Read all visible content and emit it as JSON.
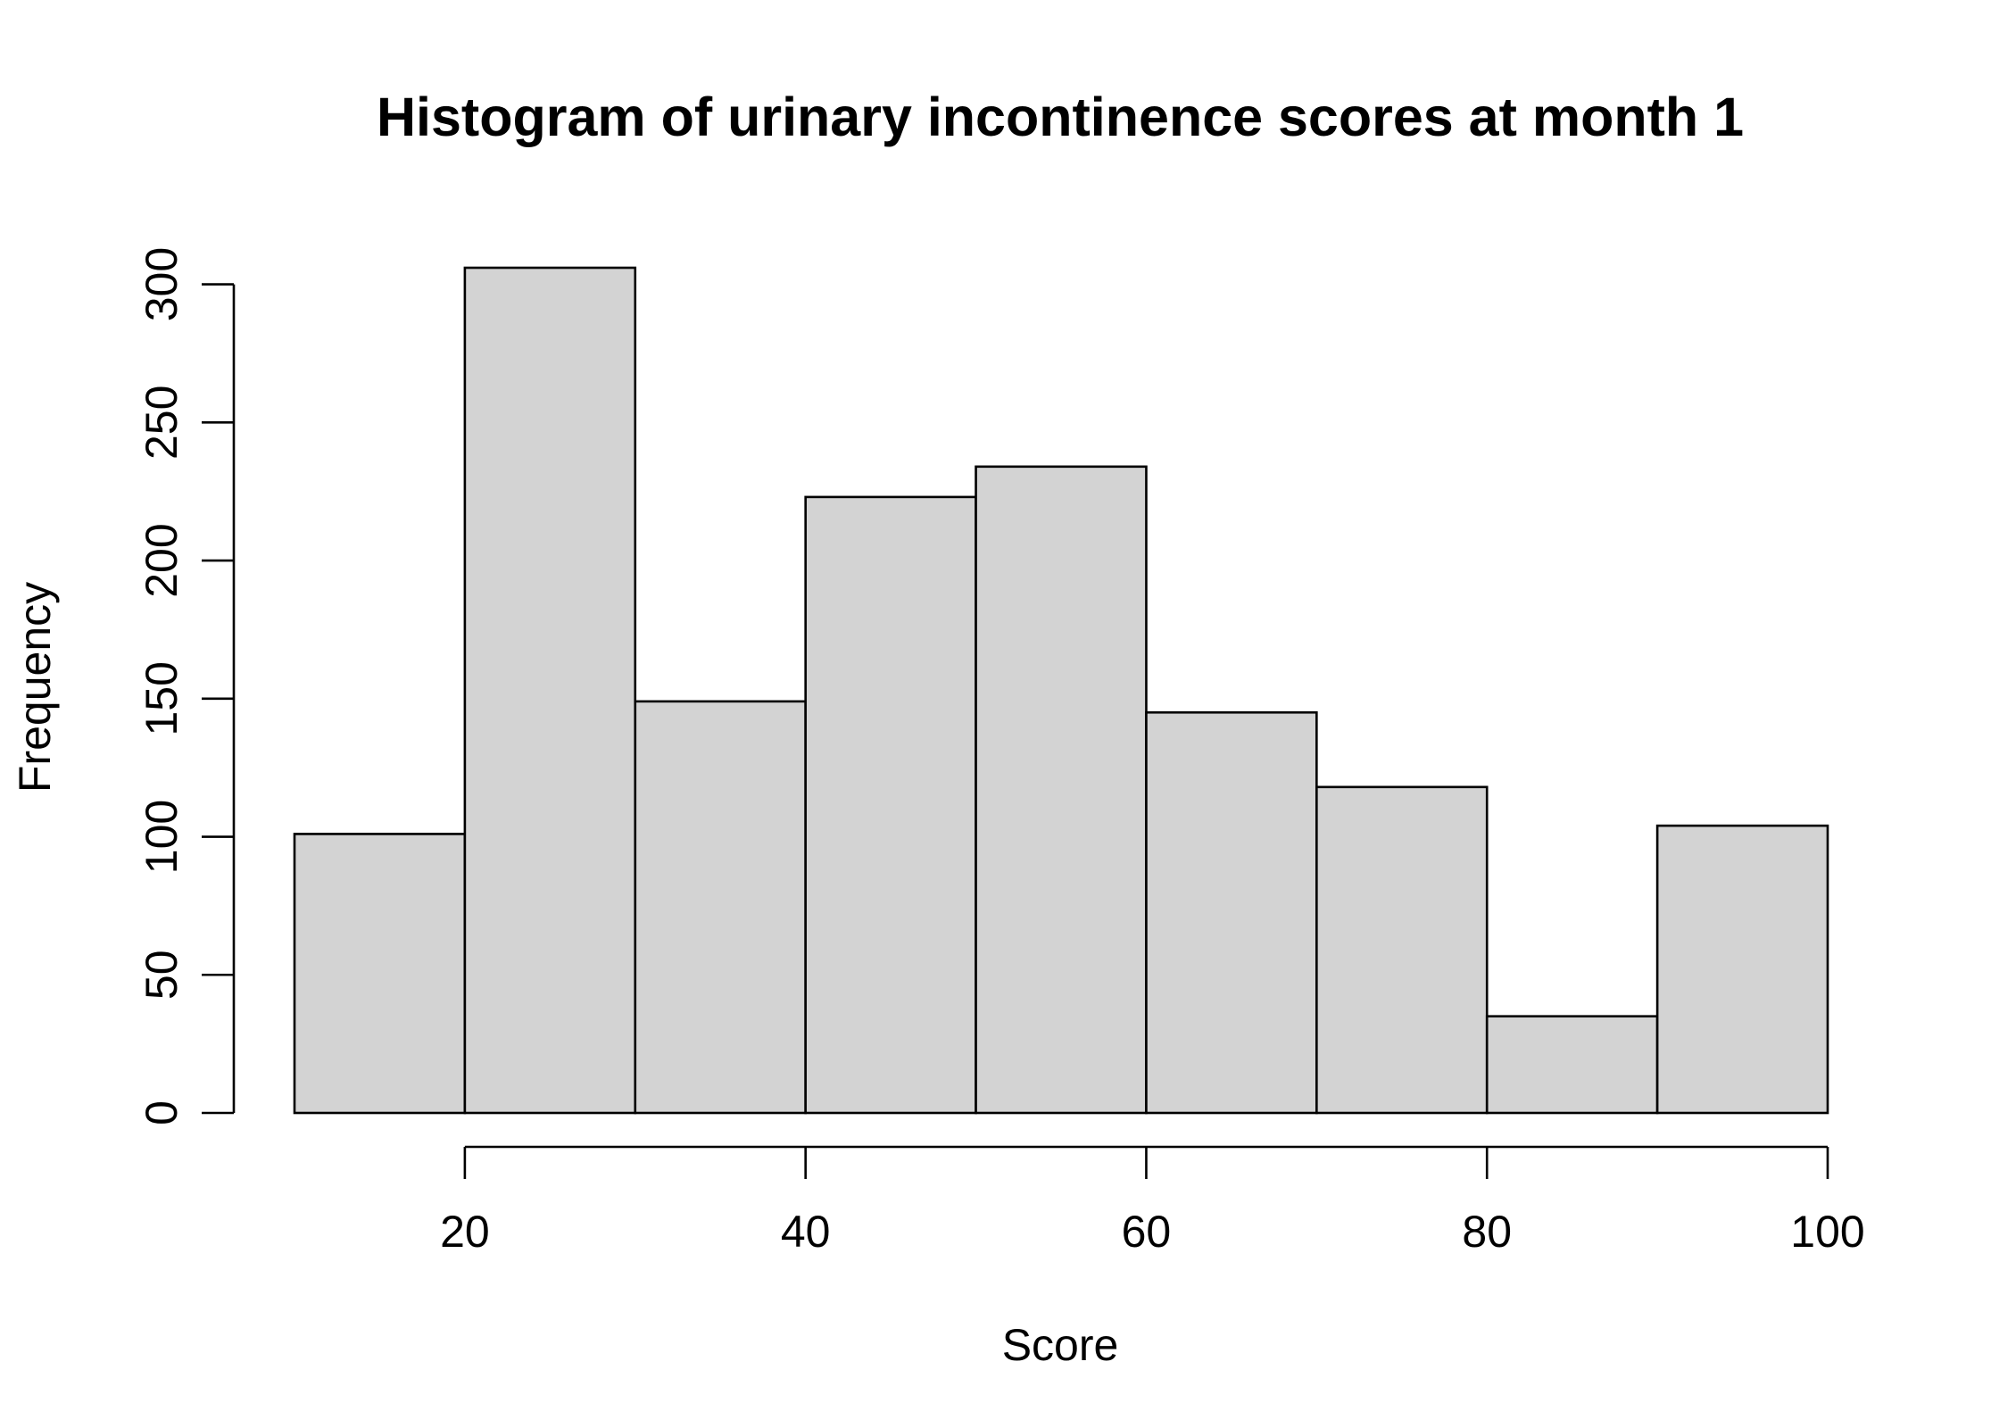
{
  "chart_data": {
    "type": "histogram",
    "title": "Histogram of urinary incontinence scores at month 1",
    "xlabel": "Score",
    "ylabel": "Frequency",
    "bins": [
      {
        "start": 10,
        "end": 20,
        "count": 101
      },
      {
        "start": 20,
        "end": 30,
        "count": 306
      },
      {
        "start": 30,
        "end": 40,
        "count": 149
      },
      {
        "start": 40,
        "end": 50,
        "count": 223
      },
      {
        "start": 50,
        "end": 60,
        "count": 234
      },
      {
        "start": 60,
        "end": 70,
        "count": 145
      },
      {
        "start": 70,
        "end": 80,
        "count": 118
      },
      {
        "start": 80,
        "end": 90,
        "count": 35
      },
      {
        "start": 90,
        "end": 100,
        "count": 104
      }
    ],
    "x_ticks": [
      20,
      40,
      60,
      80,
      100
    ],
    "y_ticks": [
      0,
      50,
      100,
      150,
      200,
      250,
      300
    ],
    "xlim": [
      10,
      100
    ],
    "ylim": [
      0,
      306
    ],
    "bar_color": "#d3d3d3",
    "grid": false,
    "legend": "none"
  }
}
